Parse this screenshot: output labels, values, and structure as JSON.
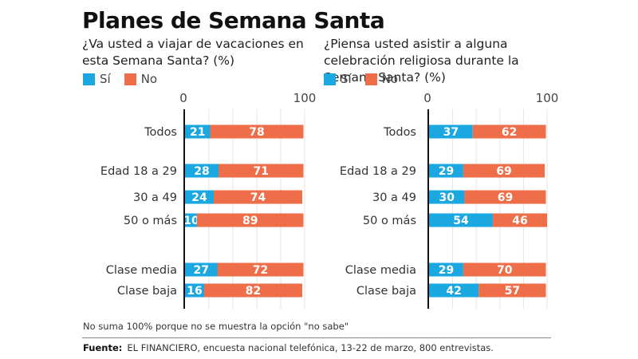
{
  "title": "Planes de Semana Santa",
  "colors": {
    "si": "#1ba8e0",
    "no": "#ee6e4a",
    "grid": "#e3e3e3",
    "axis": "#111111"
  },
  "legend": {
    "si": "Sí",
    "no": "No"
  },
  "note": "No suma 100% porque no se muestra la opción \"no sabe\"",
  "source": {
    "label": "Fuente:",
    "text": "EL FINANCIERO, encuesta nacional telefónica, 13-22 de marzo, 800 entrevistas."
  },
  "chart_data": [
    {
      "type": "bar",
      "orientation": "horizontal-stacked",
      "title": "¿Va usted a viajar de vacaciones en esta Semana Santa? (%)",
      "xlim": [
        0,
        100
      ],
      "xticks": [
        "0",
        "100"
      ],
      "grid": true,
      "legend": [
        "Sí",
        "No"
      ],
      "legend_position": "top-left",
      "categories": [
        "Todos",
        "Edad 18 a 29",
        "30 a 49",
        "50 o más",
        "Clase media",
        "Clase baja"
      ],
      "groups": [
        0,
        1,
        1,
        1,
        2,
        2
      ],
      "series": [
        {
          "name": "Sí",
          "values": [
            21,
            28,
            24,
            10,
            27,
            16
          ]
        },
        {
          "name": "No",
          "values": [
            78,
            71,
            74,
            89,
            72,
            82
          ]
        }
      ]
    },
    {
      "type": "bar",
      "orientation": "horizontal-stacked",
      "title": "¿Piensa usted asistir a alguna celebración religiosa durante la Semana Santa? (%)",
      "xlim": [
        0,
        100
      ],
      "xticks": [
        "0",
        "100"
      ],
      "grid": true,
      "legend": [
        "Sí",
        "No"
      ],
      "legend_position": "top-left",
      "categories": [
        "Todos",
        "Edad 18 a 29",
        "30 a 49",
        "50 o más",
        "Clase media",
        "Clase baja"
      ],
      "groups": [
        0,
        1,
        1,
        1,
        2,
        2
      ],
      "series": [
        {
          "name": "Sí",
          "values": [
            37,
            29,
            30,
            54,
            29,
            42
          ]
        },
        {
          "name": "No",
          "values": [
            62,
            69,
            69,
            46,
            70,
            57
          ]
        }
      ]
    }
  ]
}
